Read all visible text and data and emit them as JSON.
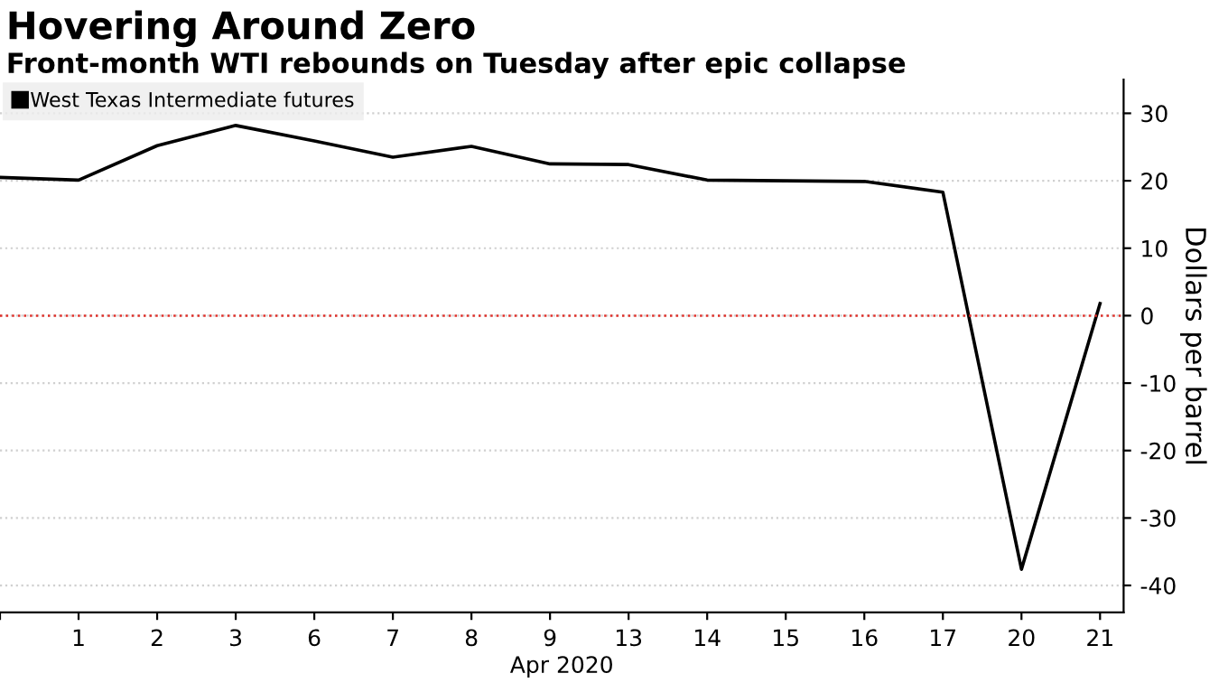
{
  "chart_data": {
    "type": "line",
    "title": "Hovering Around Zero",
    "subtitle": "Front-month WTI rebounds on Tuesday after epic collapse",
    "xlabel": "Apr 2020",
    "ylabel": "Dollars per barrel",
    "categories": [
      null,
      "1",
      "2",
      "3",
      "6",
      "7",
      "8",
      "9",
      "13",
      "14",
      "15",
      "16",
      "17",
      "20",
      "21"
    ],
    "series": [
      {
        "name": "West Texas Intermediate futures",
        "color": "#000000",
        "values": [
          20.5,
          20.1,
          25.2,
          28.2,
          25.9,
          23.5,
          25.1,
          22.5,
          22.4,
          20.1,
          20.0,
          19.9,
          18.3,
          -37.6,
          1.8
        ]
      }
    ],
    "ylim": [
      -44,
      35
    ],
    "yticks": [
      -40,
      -30,
      -20,
      -10,
      0,
      10,
      20,
      30
    ],
    "ref_lines": [
      {
        "axis": "y",
        "value": 0,
        "color": "#e0302a",
        "line_style": "dotted"
      }
    ],
    "grid": "y",
    "legend": "top left",
    "marker": "none",
    "line_style": "solid"
  }
}
